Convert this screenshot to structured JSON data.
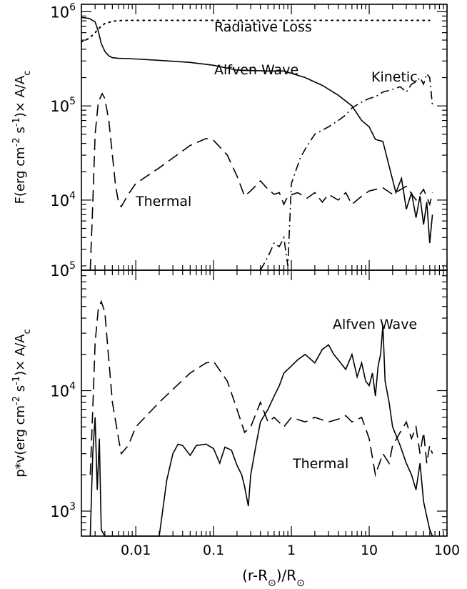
{
  "chart_data": [
    {
      "type": "line",
      "x_scale": "log",
      "y_scale": "log",
      "xlim": [
        0.002,
        100
      ],
      "ylim": [
        1800,
        1200000
      ],
      "ylabel": "F(erg cm^-2 s^-1) x A/A_c",
      "y_ticks": [
        {
          "value": 10000,
          "base": "10",
          "exp": "4"
        },
        {
          "value": 100000,
          "base": "10",
          "exp": "5"
        },
        {
          "value": 1000000,
          "base": "10",
          "exp": "6"
        }
      ],
      "annotations": [
        {
          "text": "Radiative Loss",
          "series": "radiative"
        },
        {
          "text": "Alfven Wave",
          "series": "alfven"
        },
        {
          "text": "Kinetic",
          "series": "kinetic"
        },
        {
          "text": "Thermal",
          "series": "thermal"
        }
      ],
      "series": [
        {
          "id": "radiative",
          "style": "dotted",
          "x": [
            0.002,
            0.0025,
            0.003,
            0.0035,
            0.004,
            0.005,
            0.006,
            0.008,
            0.01,
            0.02,
            0.05,
            0.1,
            1,
            10,
            60
          ],
          "y": [
            480000,
            520000,
            600000,
            690000,
            750000,
            790000,
            805000,
            810000,
            810000,
            810000,
            810000,
            810000,
            810000,
            810000,
            810000
          ]
        },
        {
          "id": "alfven",
          "style": "solid",
          "x": [
            0.002,
            0.0025,
            0.003,
            0.0033,
            0.0036,
            0.004,
            0.0045,
            0.005,
            0.006,
            0.008,
            0.01,
            0.02,
            0.05,
            0.1,
            0.2,
            0.5,
            0.8,
            1.5,
            2.5,
            4,
            6,
            8,
            10,
            12,
            15,
            18,
            22,
            26,
            30,
            35,
            40,
            45,
            50,
            55,
            60,
            65
          ],
          "y": [
            870000,
            850000,
            780000,
            620000,
            460000,
            380000,
            340000,
            325000,
            320000,
            318000,
            315000,
            305000,
            290000,
            270000,
            240000,
            235000,
            235000,
            200000,
            165000,
            130000,
            100000,
            70000,
            60000,
            44000,
            42000,
            23000,
            12000,
            17000,
            8000,
            12000,
            6500,
            11000,
            5500,
            9500,
            3500,
            7000
          ]
        },
        {
          "id": "thermal",
          "style": "dashed",
          "x": [
            0.0026,
            0.0028,
            0.003,
            0.0033,
            0.0037,
            0.004,
            0.0045,
            0.005,
            0.0055,
            0.006,
            0.0065,
            0.008,
            0.01,
            0.02,
            0.05,
            0.08,
            0.1,
            0.15,
            0.2,
            0.25,
            0.3,
            0.4,
            0.5,
            0.6,
            0.7,
            0.8,
            0.9,
            1.2,
            1.6,
            2,
            2.5,
            3,
            4,
            5,
            6,
            8,
            10,
            15,
            20,
            30,
            40,
            50,
            60,
            65
          ],
          "y": [
            1800,
            9000,
            50000,
            110000,
            135000,
            120000,
            70000,
            30000,
            14000,
            9500,
            8500,
            11500,
            15000,
            22000,
            38000,
            45000,
            43000,
            30000,
            18000,
            11000,
            12500,
            16000,
            13000,
            11500,
            12000,
            9000,
            11000,
            12000,
            10500,
            12000,
            9500,
            11500,
            10000,
            12000,
            9000,
            11000,
            12500,
            13500,
            11500,
            14000,
            10000,
            13000,
            9000,
            12000
          ]
        },
        {
          "id": "kinetic",
          "style": "dashdot",
          "x": [
            0.4,
            0.5,
            0.6,
            0.7,
            0.8,
            0.9,
            1,
            1.3,
            1.6,
            2,
            3,
            4,
            5,
            6,
            8,
            10,
            12,
            15,
            20,
            25,
            30,
            35,
            40,
            45,
            50,
            55,
            60,
            65
          ],
          "y": [
            1800,
            2500,
            3500,
            3200,
            4000,
            2000,
            15000,
            28000,
            38000,
            50000,
            60000,
            70000,
            80000,
            95000,
            110000,
            120000,
            125000,
            140000,
            150000,
            160000,
            140000,
            170000,
            180000,
            200000,
            170000,
            220000,
            200000,
            100000
          ]
        }
      ]
    },
    {
      "type": "line",
      "x_scale": "log",
      "y_scale": "log",
      "xlim": [
        0.002,
        100
      ],
      "ylim": [
        620,
        100000
      ],
      "xlabel": "(r-R_sun)/R_sun",
      "ylabel": "p*v(erg cm^-2 s^-1) x A/A_c",
      "x_ticks": [
        {
          "value": 0.01,
          "label": "0.01"
        },
        {
          "value": 0.1,
          "label": "0.1"
        },
        {
          "value": 1,
          "label": "1"
        },
        {
          "value": 10,
          "label": "10"
        },
        {
          "value": 100,
          "label": "100"
        }
      ],
      "y_ticks": [
        {
          "value": 1000,
          "base": "10",
          "exp": "3"
        },
        {
          "value": 10000,
          "base": "10",
          "exp": "4"
        },
        {
          "value": 100000,
          "base": "10",
          "exp": "5"
        }
      ],
      "annotations": [
        {
          "text": "Alfven Wave",
          "series": "alfven"
        },
        {
          "text": "Thermal",
          "series": "thermal"
        }
      ],
      "series": [
        {
          "id": "thermal",
          "style": "dashed",
          "x": [
            0.0026,
            0.0028,
            0.003,
            0.0033,
            0.0036,
            0.004,
            0.0045,
            0.005,
            0.006,
            0.0065,
            0.008,
            0.01,
            0.02,
            0.05,
            0.08,
            0.1,
            0.15,
            0.2,
            0.25,
            0.3,
            0.4,
            0.5,
            0.6,
            0.8,
            1,
            1.5,
            2,
            3,
            4,
            5,
            6,
            8,
            10,
            12,
            15,
            18,
            20,
            25,
            30,
            35,
            40,
            45,
            50,
            55,
            60,
            65
          ],
          "y": [
            2000,
            7000,
            25000,
            48000,
            55000,
            45000,
            18000,
            8000,
            4000,
            3000,
            3500,
            5000,
            8000,
            14000,
            17000,
            17500,
            12000,
            7000,
            4500,
            5000,
            8000,
            5500,
            6000,
            5000,
            6000,
            5500,
            6000,
            5500,
            5800,
            6200,
            5500,
            6000,
            4000,
            2000,
            3000,
            2500,
            3500,
            4500,
            5500,
            4000,
            5000,
            3000,
            4500,
            2500,
            3500,
            3000
          ]
        },
        {
          "id": "alfven",
          "style": "solid",
          "x": [
            0.0026,
            0.0028,
            0.003,
            0.0032,
            0.0034,
            0.0036,
            0.004,
            0.02,
            0.025,
            0.03,
            0.035,
            0.04,
            0.05,
            0.06,
            0.08,
            0.1,
            0.12,
            0.14,
            0.17,
            0.2,
            0.23,
            0.25,
            0.28,
            0.3,
            0.35,
            0.4,
            0.5,
            0.6,
            0.7,
            0.8,
            1,
            1.2,
            1.5,
            2,
            2.5,
            3,
            3.5,
            4,
            5,
            6,
            7,
            8,
            9,
            10,
            11,
            12,
            13,
            14,
            15,
            16,
            18,
            20,
            25,
            30,
            35,
            40,
            45,
            50,
            55,
            60,
            65
          ],
          "y": [
            620,
            3000,
            6000,
            1500,
            4000,
            700,
            620,
            620,
            1800,
            3000,
            3600,
            3500,
            2900,
            3500,
            3600,
            3300,
            2500,
            3400,
            3200,
            2400,
            2000,
            1600,
            1100,
            2000,
            3500,
            5500,
            7000,
            9000,
            11000,
            14000,
            16000,
            18000,
            20000,
            17000,
            22000,
            24000,
            20000,
            18000,
            15000,
            20000,
            13000,
            17000,
            12000,
            11000,
            14000,
            9000,
            16000,
            20000,
            35000,
            12000,
            8000,
            5000,
            3500,
            2500,
            2000,
            1500,
            2500,
            1200,
            900,
            700,
            620
          ]
        }
      ]
    }
  ]
}
